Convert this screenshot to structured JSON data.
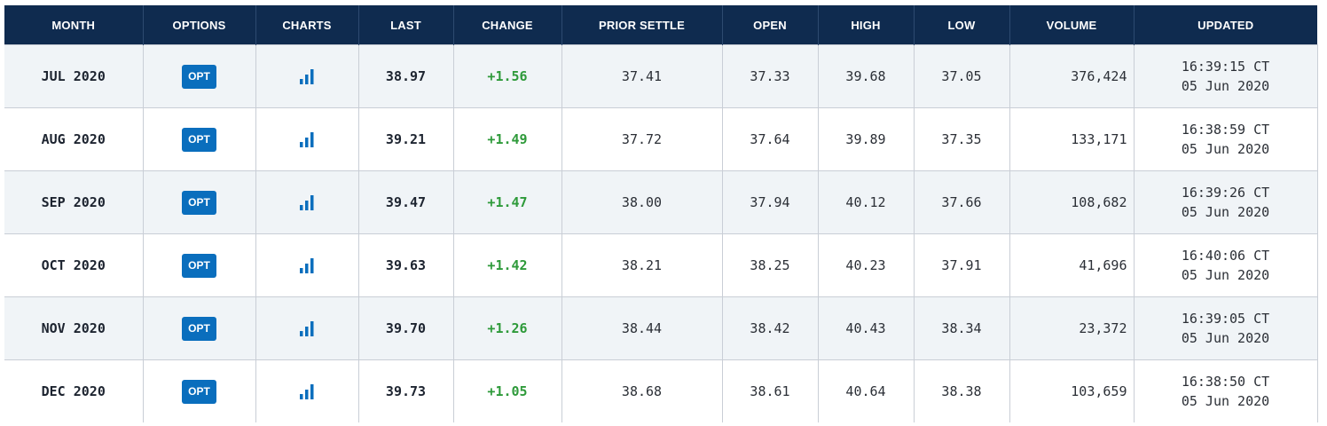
{
  "table": {
    "headers": [
      "MONTH",
      "OPTIONS",
      "CHARTS",
      "LAST",
      "CHANGE",
      "PRIOR SETTLE",
      "OPEN",
      "HIGH",
      "LOW",
      "VOLUME",
      "UPDATED"
    ],
    "rows": [
      {
        "month": "JUL 2020",
        "opt_label": "OPT",
        "chart_icon": "bar-chart-icon",
        "last": "38.97",
        "change": "+1.56",
        "prior_settle": "37.41",
        "open": "37.33",
        "high": "39.68",
        "low": "37.05",
        "volume": "376,424",
        "time": "16:39:15 CT",
        "date": "05 Jun 2020"
      },
      {
        "month": "AUG 2020",
        "opt_label": "OPT",
        "chart_icon": "bar-chart-icon",
        "last": "39.21",
        "change": "+1.49",
        "prior_settle": "37.72",
        "open": "37.64",
        "high": "39.89",
        "low": "37.35",
        "volume": "133,171",
        "time": "16:38:59 CT",
        "date": "05 Jun 2020"
      },
      {
        "month": "SEP 2020",
        "opt_label": "OPT",
        "chart_icon": "bar-chart-icon",
        "last": "39.47",
        "change": "+1.47",
        "prior_settle": "38.00",
        "open": "37.94",
        "high": "40.12",
        "low": "37.66",
        "volume": "108,682",
        "time": "16:39:26 CT",
        "date": "05 Jun 2020"
      },
      {
        "month": "OCT 2020",
        "opt_label": "OPT",
        "chart_icon": "bar-chart-icon",
        "last": "39.63",
        "change": "+1.42",
        "prior_settle": "38.21",
        "open": "38.25",
        "high": "40.23",
        "low": "37.91",
        "volume": "41,696",
        "time": "16:40:06 CT",
        "date": "05 Jun 2020"
      },
      {
        "month": "NOV 2020",
        "opt_label": "OPT",
        "chart_icon": "bar-chart-icon",
        "last": "39.70",
        "change": "+1.26",
        "prior_settle": "38.44",
        "open": "38.42",
        "high": "40.43",
        "low": "38.34",
        "volume": "23,372",
        "time": "16:39:05 CT",
        "date": "05 Jun 2020"
      },
      {
        "month": "DEC 2020",
        "opt_label": "OPT",
        "chart_icon": "bar-chart-icon",
        "last": "39.73",
        "change": "+1.05",
        "prior_settle": "38.68",
        "open": "38.61",
        "high": "40.64",
        "low": "38.38",
        "volume": "103,659",
        "time": "16:38:50 CT",
        "date": "05 Jun 2020"
      }
    ]
  },
  "colors": {
    "header_bg": "#0f2b4f",
    "header_text": "#ffffff",
    "row_alt_bg": "#f0f4f7",
    "positive_change": "#2e9a3a",
    "opt_button": "#0a6ebd",
    "chart_icon": "#0a6ebd"
  }
}
